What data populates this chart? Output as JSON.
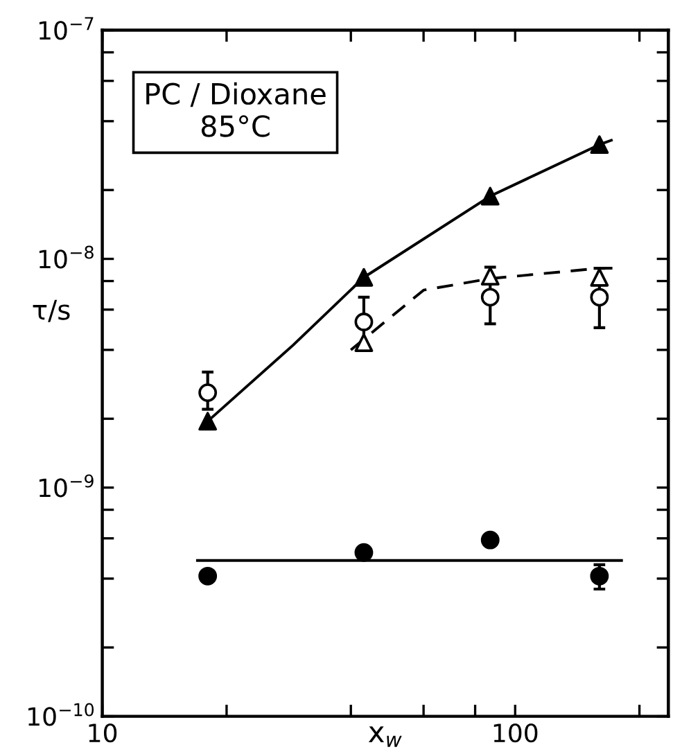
{
  "chart_data": {
    "type": "scatter",
    "log": "xy",
    "grid": false,
    "legend": false,
    "xlabel": "x$_{w}$",
    "ylabel": "τ/s",
    "annotations": [
      "PC / Dioxane\n85°C"
    ],
    "xlim": [
      10,
      235
    ],
    "ylim": [
      1e-10,
      1e-07
    ],
    "xticks": [
      10,
      {
        "value": 20,
        "label": null
      },
      {
        "value": 40,
        "label": null
      },
      {
        "value": 60,
        "label": null
      },
      {
        "value": 80,
        "label": null
      },
      100,
      {
        "value": 200,
        "label": null
      }
    ],
    "yticks": [
      {
        "value": 1e-10,
        "label": "10$^{−10}$"
      },
      {
        "value": 2e-10,
        "label": null
      },
      {
        "value": 4e-10,
        "label": null
      },
      {
        "value": 6e-10,
        "label": null
      },
      {
        "value": 8e-10,
        "label": null
      },
      {
        "value": 1e-09,
        "label": "10$^{−9}$"
      },
      {
        "value": 2e-09,
        "label": null
      },
      {
        "value": 4e-09,
        "label": null
      },
      {
        "value": 6e-09,
        "label": null
      },
      {
        "value": 8e-09,
        "label": null
      },
      {
        "value": 1e-08,
        "label": "10$^{−8}$"
      },
      {
        "value": 2e-08,
        "label": null
      },
      {
        "value": 4e-08,
        "label": null
      },
      {
        "value": 6e-08,
        "label": null
      },
      {
        "value": 8e-08,
        "label": null
      },
      {
        "value": 1e-07,
        "label": "10$^{−7}$"
      }
    ],
    "series": [
      {
        "type": "line",
        "color": "#000000",
        "line_style": "solid",
        "marker": "none",
        "x": [
          18,
          29,
          43,
          87,
          160,
          171
        ],
        "values": [
          1.95e-09,
          4.2e-09,
          8.3e-09,
          1.88e-08,
          3.16e-08,
          3.3e-08
        ]
      },
      {
        "type": "line",
        "color": "#000000",
        "line_style": "dashed",
        "marker": "none",
        "x": [
          40,
          60,
          87,
          160,
          172
        ],
        "values": [
          4e-09,
          7.3e-09,
          8.2e-09,
          9.1e-09,
          9.1e-09
        ]
      },
      {
        "type": "line",
        "color": "#000000",
        "line_style": "solid",
        "marker": "none",
        "x": [
          17,
          181
        ],
        "values": [
          4.8e-10,
          4.8e-10
        ]
      },
      {
        "color": "#000000",
        "marker": "triangle",
        "x": [
          18,
          43,
          87,
          160
        ],
        "values": [
          1.95e-09,
          8.3e-09,
          1.88e-08,
          3.16e-08
        ]
      },
      {
        "color": "#ffffff",
        "marker": "triangle",
        "x": [
          43,
          87,
          160
        ],
        "values": [
          4.3e-09,
          8.4e-09,
          8.3e-09
        ]
      },
      {
        "color": "#ffffff",
        "marker": "circle",
        "x": [
          18,
          43,
          87,
          160
        ],
        "values": [
          2.6e-09,
          5.3e-09,
          6.8e-09,
          6.8e-09
        ],
        "errors": [
          [
            2.2e-09,
            3.2e-09
          ],
          [
            4.2e-09,
            6.8e-09
          ],
          [
            5.2e-09,
            9.2e-09
          ],
          [
            5e-09,
            9.1e-09
          ]
        ]
      },
      {
        "color": "#000000",
        "marker": "circle",
        "x": [
          18,
          43,
          87,
          160
        ],
        "values": [
          4.1e-10,
          5.2e-10,
          5.9e-10,
          4.1e-10
        ],
        "errors": [
          null,
          null,
          null,
          [
            3.6e-10,
            4.6e-10
          ]
        ]
      }
    ]
  }
}
